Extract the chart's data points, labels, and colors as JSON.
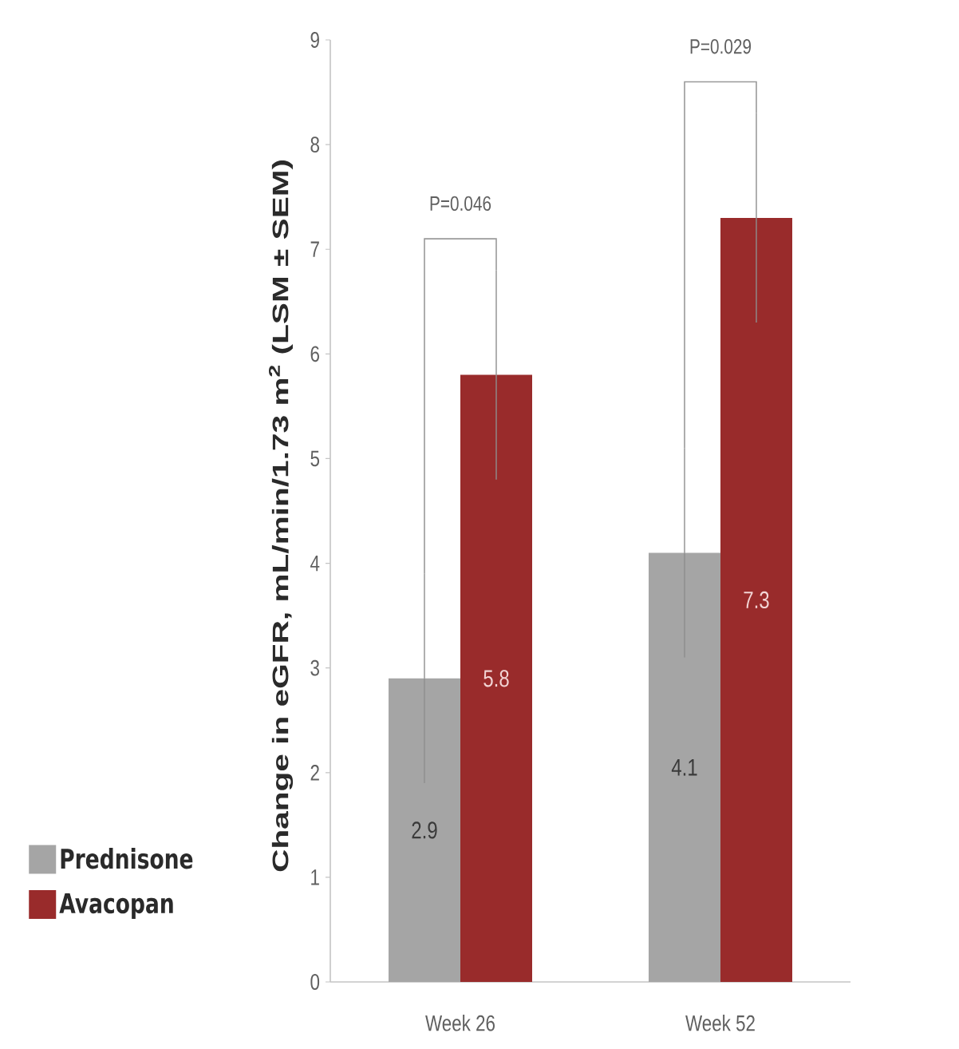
{
  "chart_data": {
    "type": "bar",
    "ylabel": "Change in eGFR, mL/min/1.73 m$^{2}$ (LSM ± SEM)",
    "categories": [
      "Week 26",
      "Week 52"
    ],
    "series": [
      {
        "name": "Prednisone",
        "color": "#a5a5a5",
        "values": [
          2.9,
          4.1
        ],
        "errors": [
          1.0,
          1.0
        ]
      },
      {
        "name": "Avacopan",
        "color": "#992b2b",
        "values": [
          5.8,
          7.3
        ],
        "errors": [
          1.0,
          1.0
        ]
      }
    ],
    "ylim": [
      0,
      9
    ],
    "yticks": [
      0,
      1,
      2,
      3,
      4,
      5,
      6,
      7,
      8,
      9
    ],
    "data_labels": true,
    "legend": "bottom left",
    "annotations": [
      "P=0.046",
      "P=0.029"
    ]
  }
}
